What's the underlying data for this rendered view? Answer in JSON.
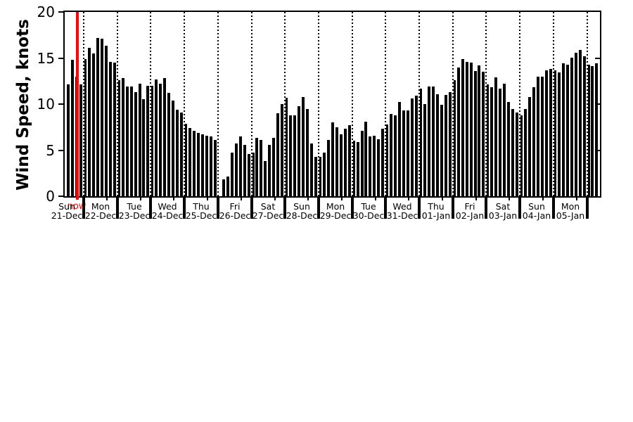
{
  "figure": {
    "background": "#ffffff"
  },
  "colors": {
    "bar": "#000000",
    "axis": "#000000",
    "text": "#000000",
    "now": "#ff0000"
  },
  "y_axis": {
    "label": "Wind Speed, knots",
    "ticks": [
      0,
      5,
      10,
      15,
      20
    ],
    "min": 0,
    "max": 20
  },
  "now_marker": {
    "label": "now",
    "color": "#ff0000",
    "day_index": 0,
    "slot": 6.1
  },
  "chart_data": {
    "type": "bar",
    "title": "",
    "ylabel": "Wind Speed, knots",
    "xlabel": "",
    "ylim": [
      0,
      20
    ],
    "yticks": [
      0,
      5,
      10,
      15,
      20
    ],
    "grid": "dotted vertical lines at each day boundary",
    "x_unit": "3-hourly wind speed bars grouped by day",
    "days": [
      {
        "day": "Sun",
        "date": "21-Dec",
        "values": [
          null,
          null,
          null,
          null,
          12.1,
          14.8,
          13.0,
          12.1
        ]
      },
      {
        "day": "Mon",
        "date": "22-Dec",
        "values": [
          14.9,
          16.1,
          15.5,
          17.2,
          17.1,
          16.3,
          14.6,
          14.5
        ]
      },
      {
        "day": "Tue",
        "date": "23-Dec",
        "values": [
          12.6,
          12.8,
          11.9,
          11.9,
          11.3,
          12.2,
          10.5,
          12.0
        ]
      },
      {
        "day": "Wed",
        "date": "24-Dec",
        "values": [
          12.0,
          12.7,
          12.2,
          12.8,
          11.2,
          10.4,
          9.4,
          9.1
        ]
      },
      {
        "day": "Thu",
        "date": "25-Dec",
        "values": [
          7.9,
          7.4,
          7.1,
          6.9,
          6.7,
          6.6,
          6.5,
          6.1
        ]
      },
      {
        "day": "Fri",
        "date": "26-Dec",
        "values": [
          null,
          1.8,
          2.1,
          4.7,
          5.7,
          6.5,
          5.6,
          4.6
        ]
      },
      {
        "day": "Sat",
        "date": "27-Dec",
        "values": [
          4.7,
          6.3,
          6.1,
          3.8,
          5.6,
          6.3,
          9.0,
          10.0
        ]
      },
      {
        "day": "Sun",
        "date": "28-Dec",
        "values": [
          10.7,
          8.8,
          8.8,
          9.8,
          10.8,
          9.5,
          5.7,
          4.3
        ]
      },
      {
        "day": "Mon",
        "date": "29-Dec",
        "values": [
          4.3,
          4.7,
          6.1,
          8.0,
          7.5,
          6.7,
          7.3,
          7.7
        ]
      },
      {
        "day": "Tue",
        "date": "30-Dec",
        "values": [
          6.0,
          5.9,
          7.1,
          8.1,
          6.5,
          6.6,
          6.2,
          7.3
        ]
      },
      {
        "day": "Wed",
        "date": "31-Dec",
        "values": [
          7.8,
          8.9,
          8.8,
          10.2,
          9.3,
          9.3,
          10.6,
          10.9
        ]
      },
      {
        "day": "Thu",
        "date": "01-Jan",
        "values": [
          11.7,
          10.0,
          11.9,
          11.9,
          11.1,
          9.9,
          11.0,
          11.3
        ]
      },
      {
        "day": "Fri",
        "date": "02-Jan",
        "values": [
          12.6,
          14.0,
          14.9,
          14.6,
          14.5,
          13.6,
          14.2,
          13.5
        ]
      },
      {
        "day": "Sat",
        "date": "03-Jan",
        "values": [
          12.1,
          11.8,
          12.9,
          11.7,
          12.2,
          10.2,
          9.5,
          9.1
        ]
      },
      {
        "day": "Sun",
        "date": "04-Jan",
        "values": [
          8.8,
          9.5,
          10.8,
          11.8,
          13.0,
          13.0,
          13.7,
          13.8
        ]
      },
      {
        "day": "Mon",
        "date": "05-Jan",
        "values": [
          13.7,
          13.4,
          14.4,
          14.3,
          15.0,
          15.6,
          15.9,
          15.2
        ]
      },
      {
        "day": "",
        "date": "",
        "values": [
          14.3,
          14.1,
          14.4,
          null,
          null,
          null,
          null,
          null
        ]
      }
    ]
  }
}
